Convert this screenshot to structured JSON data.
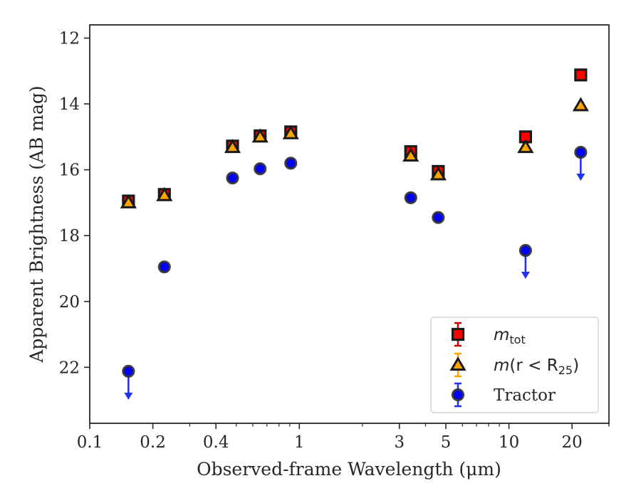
{
  "chart_data": {
    "type": "scatter",
    "xlabel": "Observed-frame Wavelength (μm)",
    "ylabel": "Apparent Brightness (AB mag)",
    "xscale": "log",
    "yaxis_inverted": true,
    "xlim": [
      0.1,
      30
    ],
    "ylim": [
      23.7,
      11.6
    ],
    "x_ticks": [
      0.1,
      0.2,
      0.4,
      1,
      3,
      5,
      10,
      20
    ],
    "x_tick_labels": [
      "0.1",
      "0.2",
      "0.4",
      "1",
      "3",
      "5",
      "10",
      "20"
    ],
    "y_ticks": [
      12,
      14,
      16,
      18,
      20,
      22
    ],
    "y_tick_labels": [
      "12",
      "14",
      "16",
      "18",
      "20",
      "22"
    ],
    "grid": false,
    "legend_position": "lower-right",
    "series": [
      {
        "name": "m_tot",
        "marker": "square",
        "color": "#ff0000",
        "edge_color": "#1a1a1a",
        "x": [
          0.153,
          0.227,
          0.48,
          0.65,
          0.91,
          3.4,
          4.6,
          12.0,
          22.0
        ],
        "y": [
          16.95,
          16.75,
          15.28,
          14.97,
          14.85,
          15.45,
          16.05,
          15.0,
          13.12
        ],
        "upper_limit": [
          false,
          false,
          false,
          false,
          false,
          false,
          false,
          false,
          false
        ]
      },
      {
        "name": "m(r < R25)",
        "marker": "triangle",
        "color": "#ffa500",
        "edge_color": "#1a1a1a",
        "x": [
          0.153,
          0.227,
          0.48,
          0.65,
          0.91,
          3.4,
          4.6,
          12.0,
          22.0
        ],
        "y": [
          17.0,
          16.78,
          15.32,
          15.0,
          14.9,
          15.58,
          16.15,
          15.32,
          14.05
        ],
        "upper_limit": [
          false,
          false,
          false,
          false,
          false,
          false,
          false,
          false,
          false
        ]
      },
      {
        "name": "Tractor",
        "marker": "circle",
        "color": "#0000ff",
        "edge_color": "#333333",
        "x": [
          0.153,
          0.227,
          0.48,
          0.65,
          0.91,
          3.4,
          4.6,
          12.0,
          22.0
        ],
        "y": [
          22.12,
          18.95,
          16.25,
          15.97,
          15.8,
          16.85,
          17.45,
          18.45,
          15.47
        ],
        "upper_limit": [
          true,
          false,
          false,
          false,
          false,
          false,
          false,
          true,
          true
        ]
      }
    ],
    "legend": {
      "entries": [
        {
          "prefix": "m",
          "sub": "tot",
          "rest": ""
        },
        {
          "prefix": "m",
          "sub": "",
          "rest": "(r < R",
          "rest_sub": "25",
          "rest_end": ")"
        },
        {
          "prefix": "Tractor",
          "sub": "",
          "rest": ""
        }
      ]
    }
  }
}
